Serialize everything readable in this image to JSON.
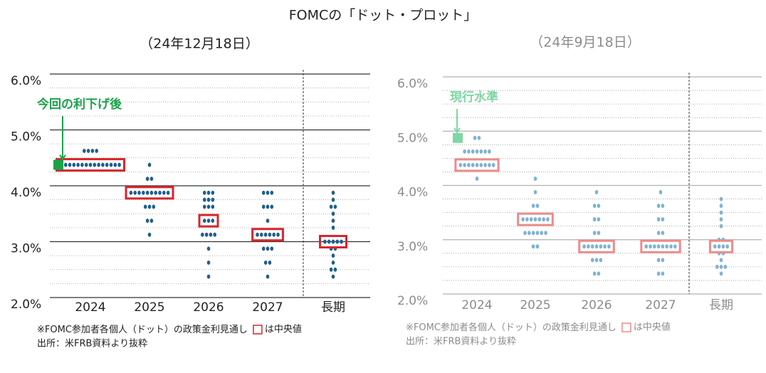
{
  "title": "FOMCの「ドット・プロット」",
  "chart_data": [
    {
      "type": "dot",
      "subtitle": "（24年12月18日）",
      "categories": [
        "2024",
        "2025",
        "2026",
        "2027",
        "長期"
      ],
      "dots": [
        [
          {
            "rate": 4.625,
            "count": 4
          },
          {
            "rate": 4.375,
            "count": 15
          }
        ],
        [
          {
            "rate": 4.375,
            "count": 1
          },
          {
            "rate": 4.125,
            "count": 2
          },
          {
            "rate": 3.875,
            "count": 10
          },
          {
            "rate": 3.625,
            "count": 3
          },
          {
            "rate": 3.375,
            "count": 2
          },
          {
            "rate": 3.125,
            "count": 1
          }
        ],
        [
          {
            "rate": 3.875,
            "count": 3
          },
          {
            "rate": 3.75,
            "count": 3
          },
          {
            "rate": 3.625,
            "count": 3
          },
          {
            "rate": 3.375,
            "count": 3
          },
          {
            "rate": 3.125,
            "count": 4
          },
          {
            "rate": 2.875,
            "count": 1
          },
          {
            "rate": 2.625,
            "count": 1
          },
          {
            "rate": 2.375,
            "count": 1
          }
        ],
        [
          {
            "rate": 3.875,
            "count": 3
          },
          {
            "rate": 3.625,
            "count": 3
          },
          {
            "rate": 3.375,
            "count": 1
          },
          {
            "rate": 3.125,
            "count": 6
          },
          {
            "rate": 2.875,
            "count": 3
          },
          {
            "rate": 2.625,
            "count": 2
          },
          {
            "rate": 2.375,
            "count": 1
          }
        ],
        [
          {
            "rate": 3.875,
            "count": 1
          },
          {
            "rate": 3.75,
            "count": 1
          },
          {
            "rate": 3.625,
            "count": 2
          },
          {
            "rate": 3.5,
            "count": 1
          },
          {
            "rate": 3.375,
            "count": 1
          },
          {
            "rate": 3.25,
            "count": 1
          },
          {
            "rate": 3.0,
            "count": 5
          },
          {
            "rate": 2.875,
            "count": 2
          },
          {
            "rate": 2.75,
            "count": 1
          },
          {
            "rate": 2.625,
            "count": 1
          },
          {
            "rate": 2.5,
            "count": 2
          },
          {
            "rate": 2.375,
            "count": 1
          }
        ]
      ],
      "medians": [
        4.375,
        3.875,
        3.375,
        3.125,
        3.0
      ],
      "ylim": [
        2,
        6
      ],
      "yticks": [
        {
          "value": 2,
          "label": "2.0%"
        },
        {
          "value": 3,
          "label": "3.0%"
        },
        {
          "value": 4,
          "label": "4.0%"
        },
        {
          "value": 5,
          "label": "5.0%"
        },
        {
          "value": 6,
          "label": "6.0%"
        }
      ],
      "minor_yticks": [
        2.25,
        2.5,
        2.75,
        3.25,
        3.5,
        3.75,
        4.25,
        4.5,
        4.75,
        5.25,
        5.5,
        5.75
      ],
      "dot_color": "#1f5f8b",
      "median_color": "#d9262b",
      "axis_color": "#333333",
      "label_color": "#222222",
      "annotation": {
        "text": "今回の利下げ後",
        "value": 4.375,
        "color": "#1aa34a"
      },
      "note_before": "※FOMC参加者各個人（ドット）の政策金利見通し",
      "note_after": "は中央値",
      "source": "出所：米FRB資料より抜粋"
    },
    {
      "type": "dot",
      "subtitle": "（24年9月18日）",
      "categories": [
        "2024",
        "2025",
        "2026",
        "2027",
        "長期"
      ],
      "dots": [
        [
          {
            "rate": 4.875,
            "count": 2
          },
          {
            "rate": 4.625,
            "count": 7
          },
          {
            "rate": 4.375,
            "count": 9
          },
          {
            "rate": 4.125,
            "count": 1
          }
        ],
        [
          {
            "rate": 4.125,
            "count": 1
          },
          {
            "rate": 3.875,
            "count": 1
          },
          {
            "rate": 3.625,
            "count": 2
          },
          {
            "rate": 3.375,
            "count": 7
          },
          {
            "rate": 3.125,
            "count": 6
          },
          {
            "rate": 2.875,
            "count": 2
          }
        ],
        [
          {
            "rate": 3.875,
            "count": 1
          },
          {
            "rate": 3.625,
            "count": 2
          },
          {
            "rate": 3.375,
            "count": 2
          },
          {
            "rate": 3.125,
            "count": 2
          },
          {
            "rate": 2.875,
            "count": 7
          },
          {
            "rate": 2.625,
            "count": 3
          },
          {
            "rate": 2.375,
            "count": 2
          }
        ],
        [
          {
            "rate": 3.875,
            "count": 1
          },
          {
            "rate": 3.625,
            "count": 2
          },
          {
            "rate": 3.375,
            "count": 2
          },
          {
            "rate": 3.125,
            "count": 2
          },
          {
            "rate": 2.875,
            "count": 8
          },
          {
            "rate": 2.625,
            "count": 2
          },
          {
            "rate": 2.375,
            "count": 2
          }
        ],
        [
          {
            "rate": 3.75,
            "count": 1
          },
          {
            "rate": 3.625,
            "count": 1
          },
          {
            "rate": 3.5,
            "count": 1
          },
          {
            "rate": 3.375,
            "count": 1
          },
          {
            "rate": 3.25,
            "count": 1
          },
          {
            "rate": 3.0,
            "count": 2
          },
          {
            "rate": 2.875,
            "count": 4
          },
          {
            "rate": 2.75,
            "count": 2
          },
          {
            "rate": 2.625,
            "count": 1
          },
          {
            "rate": 2.5,
            "count": 3
          },
          {
            "rate": 2.375,
            "count": 1
          }
        ]
      ],
      "medians": [
        4.375,
        3.375,
        2.875,
        2.875,
        2.875
      ],
      "ylim": [
        2,
        6
      ],
      "yticks": [
        {
          "value": 2,
          "label": "2.0%"
        },
        {
          "value": 3,
          "label": "3.0%"
        },
        {
          "value": 4,
          "label": "4.0%"
        },
        {
          "value": 5,
          "label": "5.0%"
        },
        {
          "value": 6,
          "label": "6.0%"
        }
      ],
      "minor_yticks": [
        2.25,
        2.5,
        2.75,
        3.25,
        3.5,
        3.75,
        4.25,
        4.5,
        4.75,
        5.25,
        5.5,
        5.75
      ],
      "dot_color": "#7fb3d1",
      "median_color": "#f08a8a",
      "axis_color": "#b0b0b0",
      "label_color": "#8c8c8c",
      "annotation": {
        "text": "現行水準",
        "value": 4.875,
        "color": "#7fd6a5"
      },
      "note_before": "※FOMC参加者各個人（ドット）の政策金利見通し",
      "note_after": "は中央値",
      "source": "出所：米FRB資料より抜粋"
    }
  ]
}
